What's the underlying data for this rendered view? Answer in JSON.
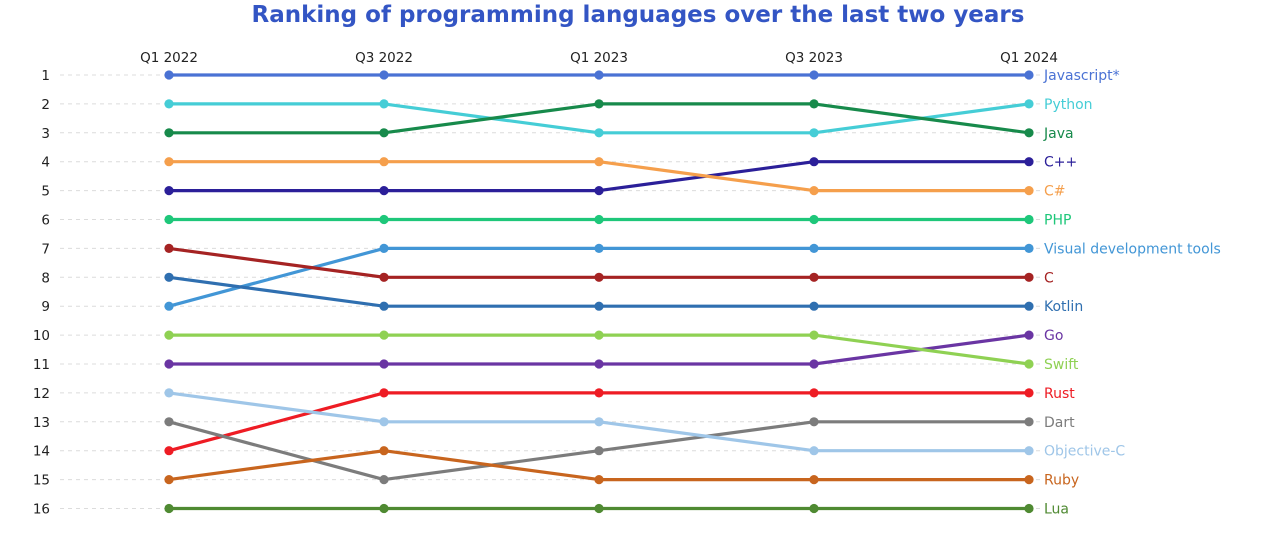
{
  "chart_data": {
    "type": "line",
    "title": "Ranking of programming languages over the last two years",
    "x": [
      "Q1 2022",
      "Q3 2022",
      "Q1 2023",
      "Q3 2023",
      "Q1 2024"
    ],
    "y_ticks": [
      "1",
      "2",
      "3",
      "4",
      "5",
      "6",
      "7",
      "8",
      "9",
      "10",
      "11",
      "12",
      "13",
      "14",
      "15",
      "16"
    ],
    "ylim": [
      1,
      16
    ],
    "y_inverted": true,
    "grid": "dashed horizontal",
    "legend_placement": "right end of lines",
    "series": [
      {
        "name": "Javascript*",
        "color": "#4a72d4",
        "values": [
          1,
          1,
          1,
          1,
          1
        ]
      },
      {
        "name": "Python",
        "color": "#45cdd6",
        "values": [
          2,
          2,
          3,
          3,
          2
        ]
      },
      {
        "name": "Java",
        "color": "#178a4b",
        "values": [
          3,
          3,
          2,
          2,
          3
        ]
      },
      {
        "name": "C++",
        "color": "#2b1f99",
        "values": [
          5,
          5,
          5,
          4,
          4
        ]
      },
      {
        "name": "C#",
        "color": "#f59f4c",
        "values": [
          4,
          4,
          4,
          5,
          5
        ]
      },
      {
        "name": "PHP",
        "color": "#1ec77a",
        "values": [
          6,
          6,
          6,
          6,
          6
        ]
      },
      {
        "name": "Visual development tools",
        "color": "#4296d6",
        "values": [
          9,
          7,
          7,
          7,
          7
        ]
      },
      {
        "name": "C",
        "color": "#a52323",
        "values": [
          7,
          8,
          8,
          8,
          8
        ]
      },
      {
        "name": "Kotlin",
        "color": "#2f6fb0",
        "values": [
          8,
          9,
          9,
          9,
          9
        ]
      },
      {
        "name": "Go",
        "color": "#6a35a3",
        "values": [
          11,
          11,
          11,
          11,
          10
        ]
      },
      {
        "name": "Swift",
        "color": "#8fd153",
        "values": [
          10,
          10,
          10,
          10,
          11
        ]
      },
      {
        "name": "Rust",
        "color": "#ee1c24",
        "values": [
          14,
          12,
          12,
          12,
          12
        ]
      },
      {
        "name": "Dart",
        "color": "#7c7c7c",
        "values": [
          13,
          15,
          14,
          13,
          13
        ]
      },
      {
        "name": "Objective-C",
        "color": "#9fc6e8",
        "values": [
          12,
          13,
          13,
          14,
          14
        ]
      },
      {
        "name": "Ruby",
        "color": "#c8651e",
        "values": [
          15,
          14,
          15,
          15,
          15
        ]
      },
      {
        "name": "Lua",
        "color": "#4f8a32",
        "values": [
          16,
          16,
          16,
          16,
          16
        ]
      }
    ]
  }
}
